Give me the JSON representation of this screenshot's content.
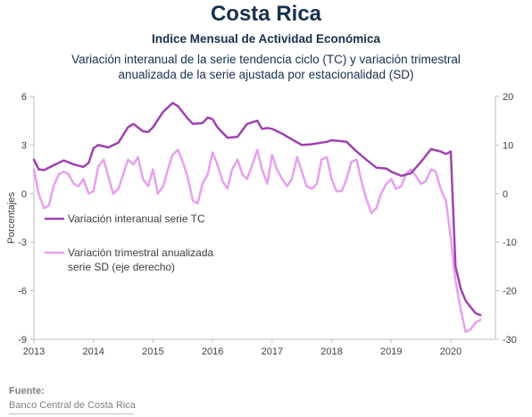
{
  "page": {
    "title": "Costa Rica",
    "subtitle": "Indice Mensual de  Actividad Económica",
    "description_line1": "Variación interanual de la serie tendencia ciclo (TC) y variación trimestral",
    "description_line2": "anualizada de la serie ajustada por estacionalidad (SD)",
    "source_label": "Fuente:",
    "source_text": "Banco Central de Costa Rica"
  },
  "chart_data": {
    "type": "line",
    "ylabel": "Porcentajes",
    "ylim": [
      -9,
      6
    ],
    "y2lim": [
      -30,
      20
    ],
    "yticks": [
      6,
      3,
      0,
      -3,
      -6,
      -9
    ],
    "y2ticks": [
      20,
      10,
      0,
      -10,
      -20,
      -30
    ],
    "xlim": [
      2013,
      2020.75
    ],
    "xticks": [
      "2013",
      "2014",
      "2015",
      "2016",
      "2017",
      "2018",
      "2019",
      "2020"
    ],
    "grid": false,
    "legend_position": "left-middle",
    "colors": {
      "tc": "#9e42b0",
      "sd": "#e6a0ee",
      "axis": "#bfbfbf",
      "text": "#17304f"
    },
    "series": [
      {
        "name": "Variación interanual serie TC",
        "axis": "left",
        "x": [
          2013.0,
          2013.08,
          2013.17,
          2013.33,
          2013.5,
          2013.67,
          2013.83,
          2013.92,
          2014.0,
          2014.08,
          2014.25,
          2014.42,
          2014.58,
          2014.67,
          2014.83,
          2014.92,
          2015.0,
          2015.17,
          2015.33,
          2015.42,
          2015.58,
          2015.67,
          2015.83,
          2015.92,
          2016.0,
          2016.08,
          2016.25,
          2016.42,
          2016.58,
          2016.75,
          2016.83,
          2016.92,
          2017.0,
          2017.17,
          2017.33,
          2017.5,
          2017.67,
          2017.83,
          2017.92,
          2018.0,
          2018.25,
          2018.42,
          2018.58,
          2018.75,
          2018.92,
          2019.0,
          2019.17,
          2019.33,
          2019.5,
          2019.67,
          2019.83,
          2019.92,
          2020.0,
          2020.08,
          2020.17,
          2020.25,
          2020.33,
          2020.42,
          2020.5
        ],
        "y": [
          2.1,
          1.5,
          1.45,
          1.75,
          2.05,
          1.8,
          1.65,
          1.9,
          2.8,
          3.0,
          2.85,
          3.15,
          4.1,
          4.3,
          3.85,
          3.8,
          4.1,
          5.05,
          5.6,
          5.4,
          4.65,
          4.3,
          4.35,
          4.7,
          4.6,
          4.1,
          3.45,
          3.5,
          4.3,
          4.5,
          4.0,
          4.05,
          4.0,
          3.7,
          3.35,
          3.0,
          3.05,
          3.15,
          3.2,
          3.3,
          3.2,
          2.6,
          2.1,
          1.6,
          1.55,
          1.35,
          1.1,
          1.25,
          1.95,
          2.75,
          2.6,
          2.45,
          2.6,
          -4.5,
          -5.9,
          -6.6,
          -7.0,
          -7.4,
          -7.5
        ]
      },
      {
        "name": "Variación trimestral anualizada serie SD (eje derecho)",
        "axis": "right",
        "x": [
          2013.0,
          2013.08,
          2013.17,
          2013.25,
          2013.33,
          2013.42,
          2013.5,
          2013.58,
          2013.67,
          2013.75,
          2013.83,
          2013.92,
          2014.0,
          2014.08,
          2014.17,
          2014.25,
          2014.33,
          2014.42,
          2014.5,
          2014.58,
          2014.67,
          2014.75,
          2014.83,
          2014.92,
          2015.0,
          2015.08,
          2015.17,
          2015.25,
          2015.33,
          2015.42,
          2015.5,
          2015.58,
          2015.67,
          2015.75,
          2015.83,
          2015.92,
          2016.0,
          2016.08,
          2016.17,
          2016.25,
          2016.33,
          2016.42,
          2016.5,
          2016.58,
          2016.67,
          2016.75,
          2016.83,
          2016.92,
          2017.0,
          2017.08,
          2017.17,
          2017.25,
          2017.33,
          2017.42,
          2017.5,
          2017.58,
          2017.67,
          2017.75,
          2017.83,
          2017.92,
          2018.0,
          2018.08,
          2018.17,
          2018.25,
          2018.33,
          2018.42,
          2018.5,
          2018.58,
          2018.67,
          2018.75,
          2018.83,
          2018.92,
          2019.0,
          2019.08,
          2019.17,
          2019.25,
          2019.33,
          2019.42,
          2019.5,
          2019.58,
          2019.67,
          2019.75,
          2019.83,
          2019.92,
          2020.0,
          2020.08,
          2020.17,
          2020.25,
          2020.33,
          2020.42,
          2020.5
        ],
        "y": [
          5.0,
          0.0,
          -3.0,
          -2.5,
          1.5,
          4.0,
          4.5,
          4.0,
          2.0,
          1.5,
          3.0,
          0.0,
          0.5,
          5.5,
          7.0,
          3.5,
          0.0,
          1.0,
          4.0,
          7.0,
          6.0,
          7.5,
          3.0,
          1.5,
          5.0,
          0.0,
          1.5,
          5.0,
          8.0,
          9.0,
          6.5,
          3.5,
          -1.5,
          -2.0,
          2.0,
          4.0,
          8.5,
          6.0,
          2.5,
          1.0,
          5.0,
          7.0,
          4.0,
          3.0,
          6.0,
          9.0,
          5.0,
          2.0,
          8.0,
          5.0,
          3.0,
          1.5,
          3.0,
          7.5,
          4.5,
          1.5,
          1.0,
          2.0,
          7.0,
          7.5,
          3.0,
          0.5,
          0.5,
          3.0,
          6.5,
          7.0,
          2.5,
          -1.0,
          -4.0,
          -3.0,
          0.0,
          2.0,
          3.0,
          1.0,
          1.5,
          4.0,
          5.0,
          3.5,
          2.0,
          2.5,
          5.0,
          4.5,
          1.0,
          -1.5,
          -9.0,
          -18.0,
          -24.0,
          -28.5,
          -28.0,
          -26.5,
          -26.0
        ]
      }
    ]
  }
}
